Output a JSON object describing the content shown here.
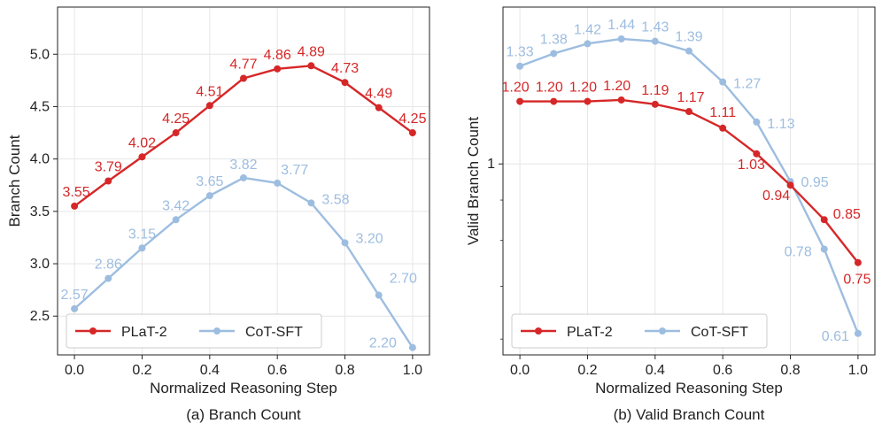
{
  "colors": {
    "plat2": "#d62728",
    "cotsft": "#9dbde0",
    "grid": "#e6e6e6",
    "axis": "#222222"
  },
  "chart_data": [
    {
      "type": "line",
      "caption": "(a) Branch Count",
      "xlabel": "Normalized Reasoning Step",
      "ylabel": "Branch Count",
      "xlim": [
        -0.05,
        1.05
      ],
      "ylim": [
        2.13,
        5.45
      ],
      "xticks": [
        "0.0",
        "0.2",
        "0.4",
        "0.6",
        "0.8",
        "1.0"
      ],
      "yticks": [
        "2.5",
        "3.0",
        "3.5",
        "4.0",
        "4.5",
        "5.0"
      ],
      "x": [
        0.0,
        0.1,
        0.2,
        0.3,
        0.4,
        0.5,
        0.6,
        0.7,
        0.8,
        0.9,
        1.0
      ],
      "legend": {
        "position": "lower-left",
        "columns": 2
      },
      "series": [
        {
          "name": "PLaT-2",
          "values": [
            3.55,
            3.79,
            4.02,
            4.25,
            4.51,
            4.77,
            4.86,
            4.89,
            4.73,
            4.49,
            4.25
          ],
          "labels": [
            "3.55",
            "3.79",
            "4.02",
            "4.25",
            "4.51",
            "4.77",
            "4.86",
            "4.89",
            "4.73",
            "4.49",
            "4.25"
          ]
        },
        {
          "name": "CoT-SFT",
          "values": [
            2.57,
            2.86,
            3.15,
            3.42,
            3.65,
            3.82,
            3.77,
            3.58,
            3.2,
            2.7,
            2.2
          ],
          "labels": [
            "2.57",
            "2.86",
            "3.15",
            "3.42",
            "3.65",
            "3.82",
            "3.77",
            "3.58",
            "3.20",
            "2.70",
            "2.20"
          ]
        }
      ]
    },
    {
      "type": "line",
      "caption": "(b) Valid Branch Count",
      "xlabel": "Normalized Reasoning Step",
      "ylabel": "Valid Branch Count",
      "yscale": "log",
      "xlim": [
        -0.05,
        1.05
      ],
      "ylim": [
        0.573,
        1.58
      ],
      "xticks": [
        "0.0",
        "0.2",
        "0.4",
        "0.6",
        "0.8",
        "1.0"
      ],
      "yticks": [
        "1"
      ],
      "x": [
        0.0,
        0.1,
        0.2,
        0.3,
        0.4,
        0.5,
        0.6,
        0.7,
        0.8,
        0.9,
        1.0
      ],
      "legend": {
        "position": "lower-left",
        "columns": 2
      },
      "series": [
        {
          "name": "PLaT-2",
          "values": [
            1.2,
            1.2,
            1.2,
            1.205,
            1.19,
            1.165,
            1.11,
            1.03,
            0.94,
            0.85,
            0.75
          ],
          "labels": [
            "1.20",
            "1.20",
            "1.20",
            "1.20",
            "1.19",
            "1.17",
            "1.11",
            "1.03",
            "0.94",
            "0.85",
            "0.75"
          ]
        },
        {
          "name": "CoT-SFT",
          "values": [
            1.33,
            1.38,
            1.42,
            1.44,
            1.43,
            1.39,
            1.27,
            1.13,
            0.95,
            0.78,
            0.61
          ],
          "labels": [
            "1.33",
            "1.38",
            "1.42",
            "1.44",
            "1.43",
            "1.39",
            "1.27",
            "1.13",
            "0.95",
            "0.78",
            "0.61"
          ]
        }
      ]
    }
  ]
}
